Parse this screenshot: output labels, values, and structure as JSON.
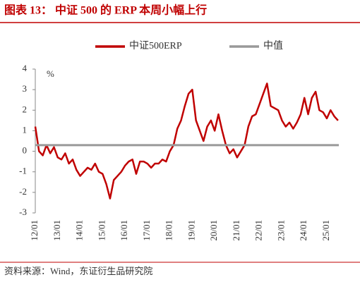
{
  "chart_data": {
    "type": "line",
    "title": "图表 13： 中证 500 的 ERP 本周小幅上行",
    "y_unit": "%",
    "source": "资料来源：Wind，东证衍生品研究院",
    "x": [
      "12/01",
      "12/03",
      "12/05",
      "12/07",
      "12/09",
      "12/11",
      "13/01",
      "13/03",
      "13/05",
      "13/07",
      "13/09",
      "13/11",
      "14/01",
      "14/03",
      "14/05",
      "14/07",
      "14/09",
      "14/11",
      "15/01",
      "15/03",
      "15/05",
      "15/07",
      "15/09",
      "15/11",
      "16/01",
      "16/03",
      "16/05",
      "16/07",
      "16/09",
      "16/11",
      "17/01",
      "17/03",
      "17/05",
      "17/07",
      "17/09",
      "17/11",
      "18/01",
      "18/03",
      "18/05",
      "18/07",
      "18/09",
      "18/11",
      "19/01",
      "19/03",
      "19/05",
      "19/07",
      "19/09",
      "19/11",
      "20/01",
      "20/03",
      "20/05",
      "20/07",
      "20/09",
      "20/11",
      "21/01",
      "21/03",
      "21/05",
      "21/07",
      "21/09",
      "21/11",
      "22/01",
      "22/03",
      "22/05",
      "22/07",
      "22/09",
      "22/11",
      "23/01",
      "23/03",
      "23/05",
      "23/07",
      "23/09",
      "23/11",
      "24/01",
      "24/03",
      "24/05",
      "24/07",
      "24/09",
      "24/11",
      "25/01",
      "25/03",
      "25/05",
      "25/07"
    ],
    "series": [
      {
        "name": "中证500ERP",
        "color": "#c00000",
        "values": [
          1.2,
          0.0,
          -0.2,
          0.3,
          -0.1,
          0.2,
          -0.3,
          -0.4,
          -0.1,
          -0.6,
          -0.4,
          -0.9,
          -1.2,
          -1.0,
          -0.8,
          -0.9,
          -0.6,
          -1.0,
          -1.1,
          -1.6,
          -2.3,
          -1.4,
          -1.2,
          -1.0,
          -0.7,
          -0.5,
          -0.4,
          -1.1,
          -0.5,
          -0.5,
          -0.6,
          -0.8,
          -0.6,
          -0.6,
          -0.4,
          -0.5,
          0.0,
          0.3,
          1.1,
          1.5,
          2.2,
          2.8,
          3.0,
          1.5,
          1.0,
          0.5,
          1.2,
          1.5,
          1.0,
          1.8,
          1.0,
          0.3,
          -0.1,
          0.1,
          -0.3,
          0.0,
          0.3,
          1.2,
          1.7,
          1.8,
          2.3,
          2.8,
          3.3,
          2.2,
          2.1,
          2.0,
          1.5,
          1.2,
          1.4,
          1.1,
          1.4,
          1.8,
          2.6,
          1.8,
          2.6,
          2.9,
          2.0,
          1.9,
          1.6,
          2.0,
          1.7,
          1.5
        ]
      },
      {
        "name": "中值",
        "color": "#999999",
        "constant": 0.3
      }
    ],
    "ylim": [
      -3,
      4
    ],
    "yticks": [
      -3,
      -2,
      -1,
      0,
      1,
      2,
      3,
      4
    ],
    "xticks": [
      "12/01",
      "13/01",
      "14/01",
      "15/01",
      "16/01",
      "17/01",
      "18/01",
      "19/01",
      "20/01",
      "21/01",
      "22/01",
      "23/01",
      "24/01",
      "25/01"
    ],
    "legend": "top"
  }
}
